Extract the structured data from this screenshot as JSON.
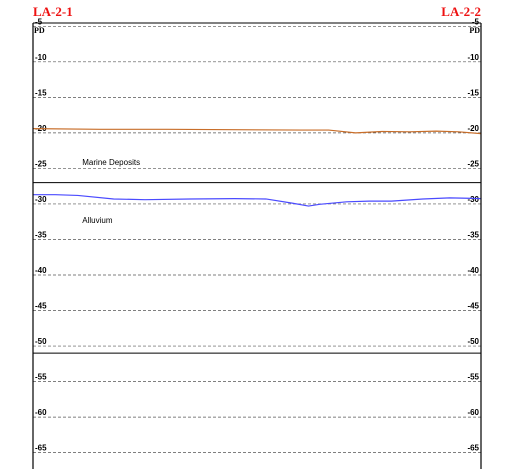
{
  "section": {
    "left_borehole": "LA-2-1",
    "right_borehole": "LA-2-2",
    "left_unit": "PD",
    "right_unit": "PD",
    "depth_ticks": [
      -5,
      -10,
      -15,
      -20,
      -25,
      -30,
      -35,
      -40,
      -45,
      -50,
      -55,
      -60,
      -65
    ],
    "depth_range": [
      -1.3,
      -67.3
    ],
    "solid_boundaries": [
      -27,
      -51
    ]
  },
  "strata": [
    {
      "name": "Marine Deposits",
      "anchor_depth": -24.5,
      "anchor_offset": 0.11
    },
    {
      "name": "Alluvium",
      "anchor_depth": -32.7,
      "anchor_offset": 0.11
    }
  ],
  "profiles": [
    {
      "name": "seabed-profile",
      "color": "#c86e2a",
      "points": [
        [
          0.0,
          -19.4
        ],
        [
          0.15,
          -19.5
        ],
        [
          0.3,
          -19.5
        ],
        [
          0.45,
          -19.55
        ],
        [
          0.6,
          -19.6
        ],
        [
          0.66,
          -19.6
        ],
        [
          0.72,
          -20.0
        ],
        [
          0.78,
          -19.8
        ],
        [
          0.84,
          -19.85
        ],
        [
          0.9,
          -19.75
        ],
        [
          0.95,
          -19.85
        ],
        [
          1.0,
          -20.1
        ]
      ]
    },
    {
      "name": "marine-alluvium-interface",
      "color": "#4a4aff",
      "points": [
        [
          0.0,
          -28.7
        ],
        [
          0.05,
          -28.7
        ],
        [
          0.1,
          -28.8
        ],
        [
          0.18,
          -29.3
        ],
        [
          0.25,
          -29.4
        ],
        [
          0.35,
          -29.3
        ],
        [
          0.45,
          -29.25
        ],
        [
          0.52,
          -29.3
        ],
        [
          0.58,
          -29.9
        ],
        [
          0.615,
          -30.3
        ],
        [
          0.64,
          -30.05
        ],
        [
          0.7,
          -29.7
        ],
        [
          0.75,
          -29.6
        ],
        [
          0.8,
          -29.6
        ],
        [
          0.87,
          -29.3
        ],
        [
          0.93,
          -29.15
        ],
        [
          0.97,
          -29.2
        ],
        [
          1.0,
          -29.25
        ]
      ]
    }
  ]
}
